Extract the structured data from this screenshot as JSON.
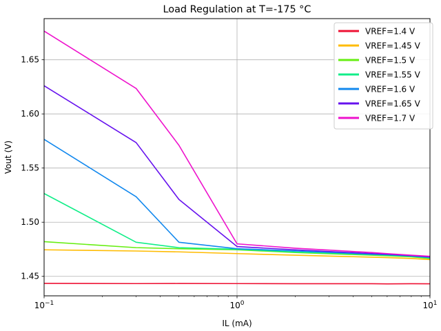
{
  "chart_data": {
    "type": "line",
    "title": "Load Regulation at T=-175 °C",
    "xlabel": "IL (mA)",
    "ylabel": "Vout (V)",
    "xscale": "log",
    "xlim": [
      0.1,
      10
    ],
    "ylim": [
      1.432,
      1.688
    ],
    "x_ticks": [
      {
        "value": 0.1,
        "base": "10",
        "exp": "−1"
      },
      {
        "value": 1,
        "base": "10",
        "exp": "0"
      },
      {
        "value": 10,
        "base": "10",
        "exp": "1"
      }
    ],
    "y_ticks": [
      {
        "value": 1.45,
        "label": "1.45"
      },
      {
        "value": 1.5,
        "label": "1.50"
      },
      {
        "value": 1.55,
        "label": "1.55"
      },
      {
        "value": 1.6,
        "label": "1.60"
      },
      {
        "value": 1.65,
        "label": "1.65"
      }
    ],
    "grid": true,
    "legend_position": "top-right",
    "x": [
      0.1,
      0.3,
      0.5,
      1,
      2,
      5,
      6,
      8,
      10
    ],
    "series": [
      {
        "name": "VREF=1.4 V",
        "color": "#ee1133",
        "values": [
          1.4435,
          1.4433,
          1.4434,
          1.4433,
          1.4432,
          1.4432,
          1.443,
          1.4432,
          1.4431
        ]
      },
      {
        "name": "VREF=1.45 V",
        "color": "#ffbb00",
        "values": [
          1.4745,
          1.4734,
          1.4726,
          1.471,
          1.4695,
          1.4677,
          1.4673,
          1.4665,
          1.4655
        ]
      },
      {
        "name": "VREF=1.5 V",
        "color": "#66ee11",
        "values": [
          1.482,
          1.4765,
          1.4755,
          1.4745,
          1.472,
          1.4695,
          1.469,
          1.468,
          1.4665
        ]
      },
      {
        "name": "VREF=1.55 V",
        "color": "#11ee88",
        "values": [
          1.5265,
          1.4815,
          1.4765,
          1.475,
          1.4725,
          1.47,
          1.4695,
          1.4685,
          1.467
        ]
      },
      {
        "name": "VREF=1.6 V",
        "color": "#1188ee",
        "values": [
          1.5765,
          1.5235,
          1.4815,
          1.4755,
          1.4735,
          1.4705,
          1.47,
          1.4688,
          1.4675
        ]
      },
      {
        "name": "VREF=1.65 V",
        "color": "#6611ee",
        "values": [
          1.626,
          1.5735,
          1.521,
          1.4775,
          1.4745,
          1.471,
          1.4705,
          1.4692,
          1.468
        ]
      },
      {
        "name": "VREF=1.7 V",
        "color": "#ee11cc",
        "values": [
          1.6765,
          1.6235,
          1.571,
          1.48,
          1.476,
          1.472,
          1.471,
          1.4695,
          1.4685
        ]
      }
    ]
  }
}
